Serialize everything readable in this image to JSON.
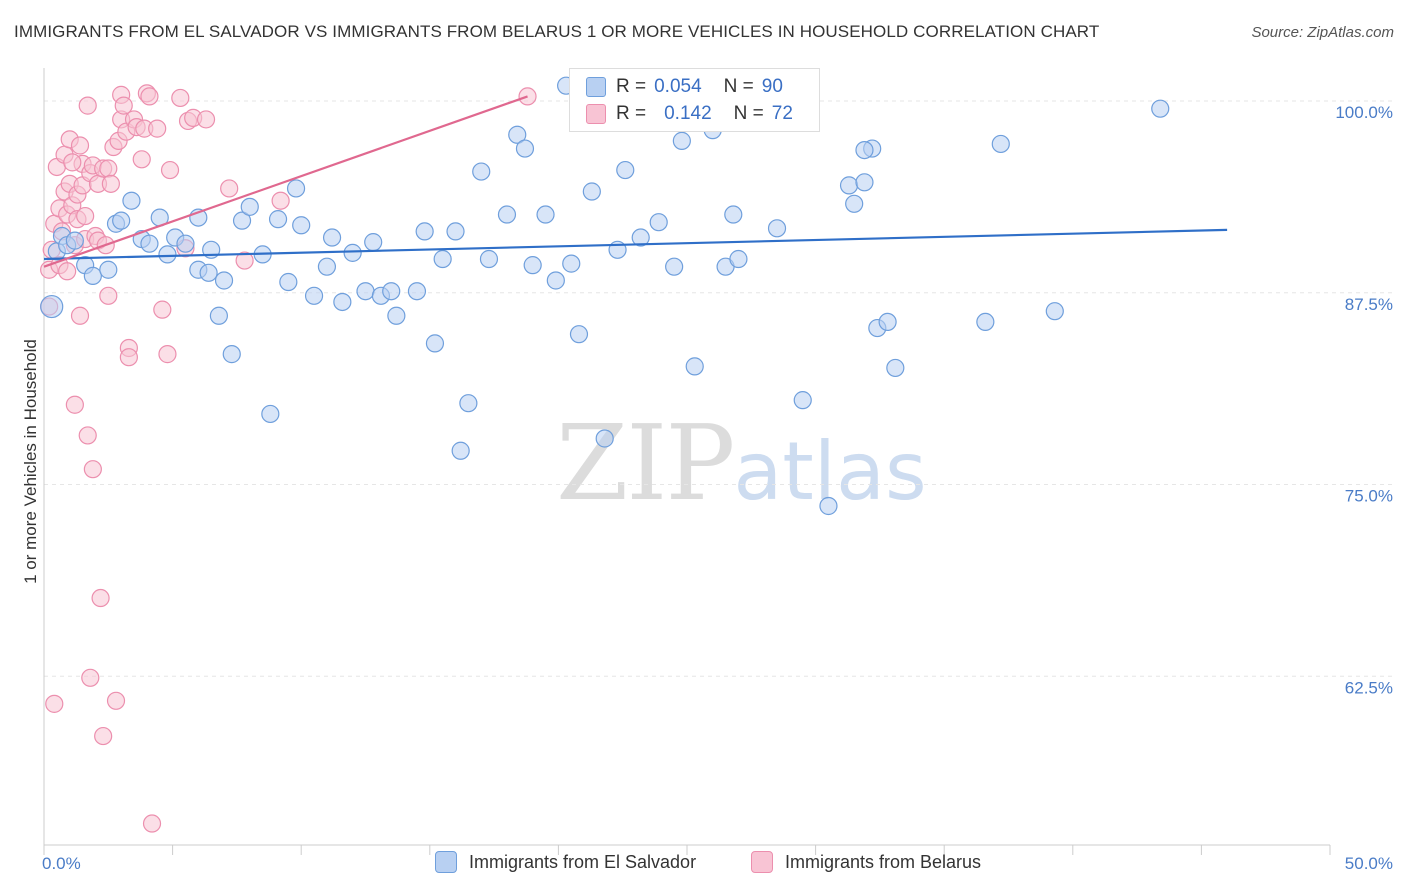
{
  "title": "IMMIGRANTS FROM EL SALVADOR VS IMMIGRANTS FROM BELARUS 1 OR MORE VEHICLES IN HOUSEHOLD CORRELATION CHART",
  "source": "Source: ZipAtlas.com",
  "watermark": {
    "zip": "ZIP",
    "atlas": "atlas"
  },
  "colors": {
    "blue_fill": "#b8d0f2",
    "blue_stroke": "#6f9fdc",
    "blue_line": "#2f6fc8",
    "pink_fill": "#f8c4d4",
    "pink_stroke": "#ec8fae",
    "pink_line": "#e0688f",
    "tick_text": "#4a7cc7",
    "grid": "#e6e6e6"
  },
  "legend": {
    "rows": [
      {
        "r_label": "R =",
        "r_value": "0.054",
        "n_label": "N =",
        "n_value": "90"
      },
      {
        "r_label": "R =",
        "r_value": "0.142",
        "n_label": "N =",
        "n_value": "72"
      }
    ]
  },
  "bottom_legend": [
    "Immigrants from El Salvador",
    "Immigrants from Belarus"
  ],
  "chart_data": {
    "type": "scatter",
    "title": "IMMIGRANTS FROM EL SALVADOR VS IMMIGRANTS FROM BELARUS 1 OR MORE VEHICLES IN HOUSEHOLD CORRELATION CHART",
    "xlabel": "",
    "ylabel": "1 or more Vehicles in Household",
    "xlim": [
      0,
      50
    ],
    "ylim": [
      51.5,
      101.5
    ],
    "x_tick_labels": [
      "0.0%",
      "50.0%"
    ],
    "y_ticks": [
      62.5,
      75.0,
      87.5,
      100.0
    ],
    "y_tick_labels": [
      "62.5%",
      "75.0%",
      "87.5%",
      "100.0%"
    ],
    "grid": true,
    "series": [
      {
        "name": "Immigrants from El Salvador",
        "R": 0.054,
        "N": 90,
        "trend": {
          "x": [
            0,
            46
          ],
          "y": [
            89.7,
            91.6
          ]
        },
        "points": [
          {
            "x": 0.3,
            "y": 86.6,
            "big": true
          },
          {
            "x": 0.5,
            "y": 90.2
          },
          {
            "x": 0.7,
            "y": 91.2
          },
          {
            "x": 0.9,
            "y": 90.6
          },
          {
            "x": 1.2,
            "y": 90.9
          },
          {
            "x": 1.6,
            "y": 89.3
          },
          {
            "x": 1.9,
            "y": 88.6
          },
          {
            "x": 2.5,
            "y": 89.0
          },
          {
            "x": 2.8,
            "y": 92.0
          },
          {
            "x": 3.0,
            "y": 92.2
          },
          {
            "x": 3.4,
            "y": 93.5
          },
          {
            "x": 3.8,
            "y": 91.0
          },
          {
            "x": 4.1,
            "y": 90.7
          },
          {
            "x": 4.5,
            "y": 92.4
          },
          {
            "x": 4.8,
            "y": 90.0
          },
          {
            "x": 5.1,
            "y": 91.1
          },
          {
            "x": 5.5,
            "y": 90.7
          },
          {
            "x": 6.0,
            "y": 89.0
          },
          {
            "x": 6.0,
            "y": 92.4
          },
          {
            "x": 6.4,
            "y": 88.8
          },
          {
            "x": 6.5,
            "y": 90.3
          },
          {
            "x": 6.8,
            "y": 86.0
          },
          {
            "x": 7.0,
            "y": 88.3
          },
          {
            "x": 7.3,
            "y": 83.5
          },
          {
            "x": 7.7,
            "y": 92.2
          },
          {
            "x": 8.0,
            "y": 93.1
          },
          {
            "x": 8.5,
            "y": 90.0
          },
          {
            "x": 8.8,
            "y": 79.6
          },
          {
            "x": 9.1,
            "y": 92.3
          },
          {
            "x": 9.5,
            "y": 88.2
          },
          {
            "x": 9.8,
            "y": 94.3
          },
          {
            "x": 10.0,
            "y": 91.9
          },
          {
            "x": 10.5,
            "y": 87.3
          },
          {
            "x": 11.0,
            "y": 89.2
          },
          {
            "x": 11.2,
            "y": 91.1
          },
          {
            "x": 11.6,
            "y": 86.9
          },
          {
            "x": 12.0,
            "y": 90.1
          },
          {
            "x": 12.5,
            "y": 87.6
          },
          {
            "x": 12.8,
            "y": 90.8
          },
          {
            "x": 13.1,
            "y": 87.3
          },
          {
            "x": 13.5,
            "y": 87.6
          },
          {
            "x": 13.7,
            "y": 86.0
          },
          {
            "x": 14.5,
            "y": 87.6
          },
          {
            "x": 14.8,
            "y": 91.5
          },
          {
            "x": 15.2,
            "y": 84.2
          },
          {
            "x": 15.5,
            "y": 89.7
          },
          {
            "x": 16.0,
            "y": 91.5
          },
          {
            "x": 16.2,
            "y": 77.2
          },
          {
            "x": 16.5,
            "y": 80.3
          },
          {
            "x": 17.0,
            "y": 95.4
          },
          {
            "x": 17.3,
            "y": 89.7
          },
          {
            "x": 18.0,
            "y": 92.6
          },
          {
            "x": 18.4,
            "y": 97.8
          },
          {
            "x": 18.7,
            "y": 96.9
          },
          {
            "x": 19.0,
            "y": 89.3
          },
          {
            "x": 19.5,
            "y": 92.6
          },
          {
            "x": 19.9,
            "y": 88.3
          },
          {
            "x": 20.3,
            "y": 101.0
          },
          {
            "x": 20.5,
            "y": 89.4
          },
          {
            "x": 20.8,
            "y": 84.8
          },
          {
            "x": 21.3,
            "y": 94.1
          },
          {
            "x": 21.8,
            "y": 78.0
          },
          {
            "x": 22.3,
            "y": 90.3
          },
          {
            "x": 22.6,
            "y": 95.5
          },
          {
            "x": 23.2,
            "y": 91.1
          },
          {
            "x": 23.9,
            "y": 92.1
          },
          {
            "x": 24.5,
            "y": 89.2
          },
          {
            "x": 24.8,
            "y": 97.4
          },
          {
            "x": 25.3,
            "y": 82.7
          },
          {
            "x": 26.0,
            "y": 98.1
          },
          {
            "x": 26.5,
            "y": 89.2
          },
          {
            "x": 26.8,
            "y": 92.6
          },
          {
            "x": 27.0,
            "y": 89.7
          },
          {
            "x": 27.5,
            "y": 98.6
          },
          {
            "x": 28.5,
            "y": 91.7
          },
          {
            "x": 28.8,
            "y": 98.7
          },
          {
            "x": 29.5,
            "y": 80.5
          },
          {
            "x": 30.5,
            "y": 73.6
          },
          {
            "x": 31.3,
            "y": 94.5
          },
          {
            "x": 31.5,
            "y": 93.3
          },
          {
            "x": 31.9,
            "y": 94.7
          },
          {
            "x": 32.2,
            "y": 96.9
          },
          {
            "x": 32.4,
            "y": 85.2
          },
          {
            "x": 32.8,
            "y": 85.6
          },
          {
            "x": 33.1,
            "y": 82.6
          },
          {
            "x": 36.6,
            "y": 85.6
          },
          {
            "x": 37.2,
            "y": 97.2
          },
          {
            "x": 39.3,
            "y": 86.3
          },
          {
            "x": 43.4,
            "y": 99.5
          },
          {
            "x": 31.9,
            "y": 96.8
          }
        ]
      },
      {
        "name": "Immigrants from Belarus",
        "R": 0.142,
        "N": 72,
        "trend": {
          "x": [
            0,
            18.8
          ],
          "y": [
            89.2,
            100.3
          ]
        },
        "points": [
          {
            "x": 0.2,
            "y": 89.0
          },
          {
            "x": 0.2,
            "y": 86.6
          },
          {
            "x": 0.3,
            "y": 90.3
          },
          {
            "x": 0.4,
            "y": 60.7
          },
          {
            "x": 0.4,
            "y": 92.0
          },
          {
            "x": 0.5,
            "y": 95.7
          },
          {
            "x": 0.6,
            "y": 93.0
          },
          {
            "x": 0.6,
            "y": 89.3
          },
          {
            "x": 0.7,
            "y": 91.5
          },
          {
            "x": 0.8,
            "y": 96.5
          },
          {
            "x": 0.8,
            "y": 94.1
          },
          {
            "x": 0.9,
            "y": 92.6
          },
          {
            "x": 1.0,
            "y": 97.5
          },
          {
            "x": 1.0,
            "y": 94.6
          },
          {
            "x": 1.1,
            "y": 93.2
          },
          {
            "x": 1.2,
            "y": 90.6
          },
          {
            "x": 1.2,
            "y": 80.2
          },
          {
            "x": 1.3,
            "y": 93.9
          },
          {
            "x": 1.3,
            "y": 92.3
          },
          {
            "x": 1.4,
            "y": 97.1
          },
          {
            "x": 1.4,
            "y": 86.0
          },
          {
            "x": 1.5,
            "y": 95.9
          },
          {
            "x": 1.5,
            "y": 94.5
          },
          {
            "x": 1.6,
            "y": 91.0
          },
          {
            "x": 1.7,
            "y": 99.7
          },
          {
            "x": 1.7,
            "y": 78.2
          },
          {
            "x": 1.8,
            "y": 95.3
          },
          {
            "x": 1.8,
            "y": 62.4
          },
          {
            "x": 1.9,
            "y": 76.0
          },
          {
            "x": 1.9,
            "y": 95.8
          },
          {
            "x": 2.0,
            "y": 91.2
          },
          {
            "x": 2.1,
            "y": 94.6
          },
          {
            "x": 2.1,
            "y": 90.9
          },
          {
            "x": 2.2,
            "y": 67.6
          },
          {
            "x": 2.3,
            "y": 58.6
          },
          {
            "x": 2.3,
            "y": 95.6
          },
          {
            "x": 2.4,
            "y": 90.6
          },
          {
            "x": 2.5,
            "y": 95.6
          },
          {
            "x": 2.6,
            "y": 94.6
          },
          {
            "x": 2.7,
            "y": 97.0
          },
          {
            "x": 2.8,
            "y": 60.9
          },
          {
            "x": 2.9,
            "y": 97.4
          },
          {
            "x": 3.0,
            "y": 100.4
          },
          {
            "x": 3.0,
            "y": 98.8
          },
          {
            "x": 3.1,
            "y": 99.7
          },
          {
            "x": 3.2,
            "y": 98.0
          },
          {
            "x": 3.3,
            "y": 83.9
          },
          {
            "x": 3.3,
            "y": 83.3
          },
          {
            "x": 3.5,
            "y": 98.8
          },
          {
            "x": 3.6,
            "y": 98.3
          },
          {
            "x": 3.8,
            "y": 96.2
          },
          {
            "x": 3.9,
            "y": 98.2
          },
          {
            "x": 4.0,
            "y": 100.5
          },
          {
            "x": 4.1,
            "y": 100.3
          },
          {
            "x": 4.2,
            "y": 52.9
          },
          {
            "x": 4.4,
            "y": 98.2
          },
          {
            "x": 4.6,
            "y": 86.4
          },
          {
            "x": 4.8,
            "y": 83.5
          },
          {
            "x": 4.9,
            "y": 95.5
          },
          {
            "x": 5.3,
            "y": 100.2
          },
          {
            "x": 5.5,
            "y": 90.4
          },
          {
            "x": 5.6,
            "y": 98.7
          },
          {
            "x": 5.8,
            "y": 98.9
          },
          {
            "x": 6.3,
            "y": 98.8
          },
          {
            "x": 7.2,
            "y": 94.3
          },
          {
            "x": 7.8,
            "y": 89.6
          },
          {
            "x": 9.2,
            "y": 93.5
          },
          {
            "x": 18.8,
            "y": 100.3
          },
          {
            "x": 2.5,
            "y": 87.3
          },
          {
            "x": 1.1,
            "y": 96.0
          },
          {
            "x": 0.9,
            "y": 88.9
          },
          {
            "x": 1.6,
            "y": 92.5
          }
        ]
      }
    ]
  }
}
